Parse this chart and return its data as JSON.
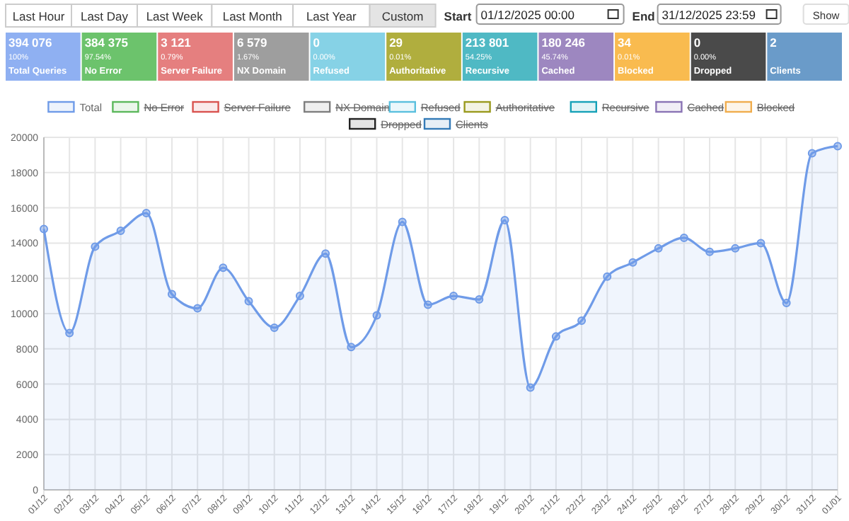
{
  "chart_data": [
    {
      "type": "other",
      "annotations": [
        "Last Hour",
        "Last Day",
        "Last Week",
        "Last Month",
        "Last Year",
        "Custom",
        "Start",
        "01/12/2025 00:00",
        "End",
        "31/12/2025 23:59",
        "Show"
      ],
      "categories": [
        "Total Queries",
        "No Error",
        "Server Failure",
        "NX Domain",
        "Refused",
        "Authoritative",
        "Recursive",
        "Cached",
        "Blocked",
        "Dropped",
        "Clients"
      ],
      "series": [
        {
          "colors": [
            "#8fb0f2",
            "#6cc36c",
            "#e57f7f",
            "#9e9e9e",
            "#86d2e6",
            "#b0ae3e",
            "#4fb9c4",
            "#9d87c0",
            "#f9bb4f",
            "#4a4a4a",
            "#6a9bc9"
          ],
          "values": [
            394076,
            384375,
            3121,
            6579,
            0,
            29,
            213801,
            180246,
            34,
            0,
            2
          ],
          "value_labels": [
            "394 076",
            "384 375",
            "3 121",
            "6 579",
            "0",
            "29",
            "213 801",
            "180 246",
            "34",
            "0",
            "2"
          ]
        },
        {
          "values": [
            100,
            97.54,
            0.79,
            1.67,
            0,
            0.01,
            54.25,
            45.74,
            0.01,
            0,
            null
          ],
          "value_labels": [
            "100%",
            "97.54%",
            "0.79%",
            "1.67%",
            "0.00%",
            "0.01%",
            "54.25%",
            "45.74%",
            "0.01%",
            "0.00%",
            null
          ]
        }
      ]
    },
    {
      "type": "line",
      "categories": [
        "01/12",
        "02/12",
        "03/12",
        "04/12",
        "05/12",
        "06/12",
        "07/12",
        "08/12",
        "09/12",
        "10/12",
        "11/12",
        "12/12",
        "13/12",
        "14/12",
        "15/12",
        "16/12",
        "17/12",
        "18/12",
        "19/12",
        "20/12",
        "21/12",
        "22/12",
        "23/12",
        "24/12",
        "25/12",
        "26/12",
        "27/12",
        "28/12",
        "29/12",
        "30/12",
        "31/12",
        "01/01"
      ],
      "ylim": [
        0,
        20000
      ],
      "yticks": [
        0,
        2000,
        4000,
        6000,
        8000,
        10000,
        12000,
        14000,
        16000,
        18000,
        20000
      ],
      "grid": true,
      "legend": "top",
      "marker": "circle",
      "series": [
        {
          "name": "Total",
          "type": "area",
          "color": "#6f9be8",
          "values": [
            14800,
            8900,
            13800,
            14700,
            15700,
            11100,
            10300,
            12600,
            10700,
            9200,
            11000,
            13400,
            8100,
            9900,
            15200,
            10500,
            11000,
            10800,
            15300,
            5800,
            8700,
            9600,
            12100,
            12900,
            13700,
            14300,
            13500,
            13700,
            14000,
            10600,
            19100,
            19500
          ]
        },
        {
          "name": "No Error",
          "color": "#5cb85c",
          "values": [
            null,
            null,
            null,
            null,
            null,
            null,
            null,
            null,
            null,
            null,
            null,
            null,
            null,
            null,
            null,
            null,
            null,
            null,
            null,
            null,
            null,
            null,
            null,
            null,
            null,
            null,
            null,
            null,
            null,
            null,
            null,
            null
          ]
        },
        {
          "name": "Server Failure",
          "color": "#d9534f",
          "values": [
            null,
            null,
            null,
            null,
            null,
            null,
            null,
            null,
            null,
            null,
            null,
            null,
            null,
            null,
            null,
            null,
            null,
            null,
            null,
            null,
            null,
            null,
            null,
            null,
            null,
            null,
            null,
            null,
            null,
            null,
            null,
            null
          ]
        },
        {
          "name": "NX Domain",
          "color": "#7f7f7f",
          "values": [
            null,
            null,
            null,
            null,
            null,
            null,
            null,
            null,
            null,
            null,
            null,
            null,
            null,
            null,
            null,
            null,
            null,
            null,
            null,
            null,
            null,
            null,
            null,
            null,
            null,
            null,
            null,
            null,
            null,
            null,
            null,
            null
          ]
        },
        {
          "name": "Refused",
          "color": "#5bc0de",
          "values": [
            null,
            null,
            null,
            null,
            null,
            null,
            null,
            null,
            null,
            null,
            null,
            null,
            null,
            null,
            null,
            null,
            null,
            null,
            null,
            null,
            null,
            null,
            null,
            null,
            null,
            null,
            null,
            null,
            null,
            null,
            null,
            null
          ]
        },
        {
          "name": "Authoritative",
          "color": "#9a9a1e",
          "values": [
            null,
            null,
            null,
            null,
            null,
            null,
            null,
            null,
            null,
            null,
            null,
            null,
            null,
            null,
            null,
            null,
            null,
            null,
            null,
            null,
            null,
            null,
            null,
            null,
            null,
            null,
            null,
            null,
            null,
            null,
            null,
            null
          ]
        },
        {
          "name": "Recursive",
          "color": "#17a2b8",
          "values": [
            null,
            null,
            null,
            null,
            null,
            null,
            null,
            null,
            null,
            null,
            null,
            null,
            null,
            null,
            null,
            null,
            null,
            null,
            null,
            null,
            null,
            null,
            null,
            null,
            null,
            null,
            null,
            null,
            null,
            null,
            null,
            null
          ]
        },
        {
          "name": "Cached",
          "color": "#8a74b5",
          "values": [
            null,
            null,
            null,
            null,
            null,
            null,
            null,
            null,
            null,
            null,
            null,
            null,
            null,
            null,
            null,
            null,
            null,
            null,
            null,
            null,
            null,
            null,
            null,
            null,
            null,
            null,
            null,
            null,
            null,
            null,
            null,
            null
          ]
        },
        {
          "name": "Blocked",
          "color": "#f0ad4e",
          "values": [
            null,
            null,
            null,
            null,
            null,
            null,
            null,
            null,
            null,
            null,
            null,
            null,
            null,
            null,
            null,
            null,
            null,
            null,
            null,
            null,
            null,
            null,
            null,
            null,
            null,
            null,
            null,
            null,
            null,
            null,
            null,
            null
          ]
        },
        {
          "name": "Dropped",
          "color": "#222222",
          "values": [
            null,
            null,
            null,
            null,
            null,
            null,
            null,
            null,
            null,
            null,
            null,
            null,
            null,
            null,
            null,
            null,
            null,
            null,
            null,
            null,
            null,
            null,
            null,
            null,
            null,
            null,
            null,
            null,
            null,
            null,
            null,
            null
          ]
        },
        {
          "name": "Clients",
          "color": "#337ab7",
          "values": [
            null,
            null,
            null,
            null,
            null,
            null,
            null,
            null,
            null,
            null,
            null,
            null,
            null,
            null,
            null,
            null,
            null,
            null,
            null,
            null,
            null,
            null,
            null,
            null,
            null,
            null,
            null,
            null,
            null,
            null,
            null,
            null
          ]
        }
      ]
    }
  ]
}
